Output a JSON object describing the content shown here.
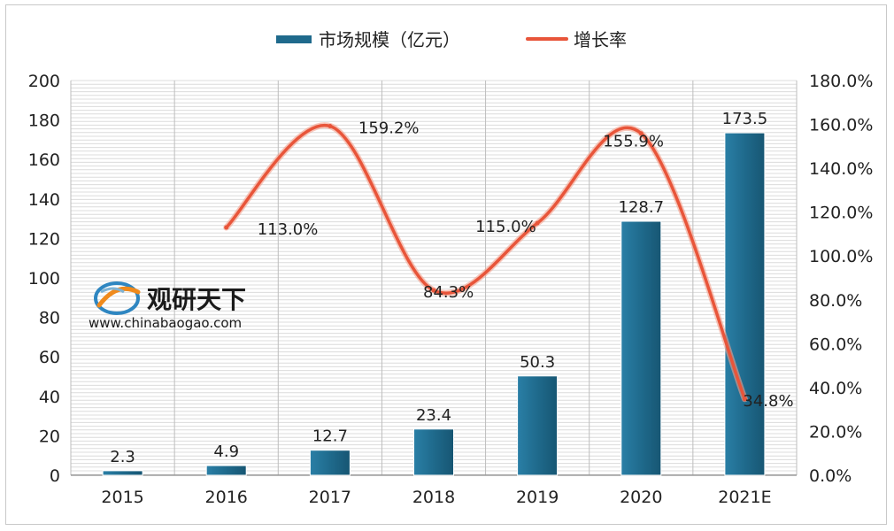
{
  "watermark": {
    "name": "观研天下",
    "url": "www.chinabaogao.com"
  },
  "chart_data": {
    "type": "bar",
    "categories": [
      "2015",
      "2016",
      "2017",
      "2018",
      "2019",
      "2020",
      "2021E"
    ],
    "series": [
      {
        "name": "市场规模（亿元）",
        "type": "bar",
        "axis": "left",
        "color": "#1f6a8c",
        "values": [
          2.3,
          4.9,
          12.7,
          23.4,
          50.3,
          128.7,
          173.5
        ],
        "labels": [
          "2.3",
          "4.9",
          "12.7",
          "23.4",
          "50.3",
          "128.7",
          "173.5"
        ]
      },
      {
        "name": "增长率",
        "type": "line",
        "axis": "right",
        "color": "#e8553a",
        "values": [
          null,
          113.0,
          159.2,
          84.3,
          115.0,
          155.9,
          34.8
        ],
        "labels": [
          "",
          "113.0%",
          "159.2%",
          "84.3%",
          "115.0%",
          "155.9%",
          "34.8%"
        ]
      }
    ],
    "ylim": [
      0,
      200
    ],
    "yticks": [
      "0",
      "20",
      "40",
      "60",
      "80",
      "100",
      "120",
      "140",
      "160",
      "180",
      "200"
    ],
    "y2lim": [
      0,
      180
    ],
    "y2ticks": [
      "0.0%",
      "20.0%",
      "40.0%",
      "60.0%",
      "80.0%",
      "100.0%",
      "120.0%",
      "140.0%",
      "160.0%",
      "180.0%"
    ],
    "grid": true,
    "legend": "top-center"
  }
}
